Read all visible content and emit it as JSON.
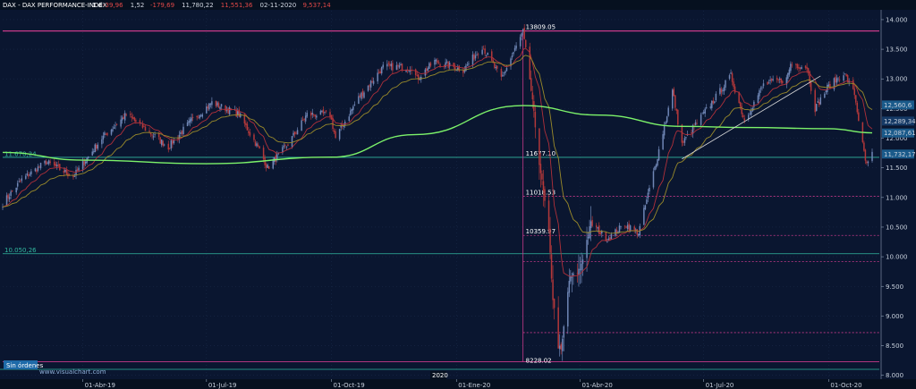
{
  "header": {
    "symbol": "DAX - DAX PERFORMANCE-INDEX",
    "timeframe": "1 d",
    "stats": [
      "-39,96",
      "1,52",
      "-179,69",
      "11,780,22",
      "11,551,36",
      "02-11-2020",
      "9,537,14"
    ]
  },
  "watermark": "www.visualchart.com",
  "orders_label": "Sin órdenes",
  "year_label": "2020",
  "colors": {
    "background": "#0a1630",
    "bull": "#6f86b5",
    "bear": "#b3383a",
    "sma200": "#7cf26a",
    "ema_fast": "#b0303a",
    "ema_slow": "#9a8a2a",
    "magenta": "#c83a8a",
    "teal": "#32b8a0",
    "trendline": "#d8d8d8"
  },
  "chart_data": {
    "type": "candlestick",
    "ylim": [
      7950,
      14150
    ],
    "yticks": [
      8000,
      8500,
      9000,
      9500,
      10000,
      10500,
      11000,
      11500,
      12000,
      12500,
      13000,
      13500,
      14000
    ],
    "ytick_labels": [
      "8.000",
      "8.500",
      "9.000",
      "9.500",
      "10.000",
      "10.500",
      "11.000",
      "11.500",
      "12.000",
      "12.500",
      "13.000",
      "13.500",
      "14.000"
    ],
    "date_range": [
      "2019-02-01",
      "2020-11-02"
    ],
    "xticks": [
      {
        "date": "2019-04-01",
        "label": "01-Abr-19"
      },
      {
        "date": "2019-07-01",
        "label": "01-Jul-19"
      },
      {
        "date": "2019-10-01",
        "label": "01-Oct-19"
      },
      {
        "date": "2020-01-01",
        "label": "01-Ene-20"
      },
      {
        "date": "2020-04-01",
        "label": "01-Abr-20"
      },
      {
        "date": "2020-07-01",
        "label": "01-Jul-20"
      },
      {
        "date": "2020-10-01",
        "label": "01-Oct-20"
      }
    ],
    "price_anchors": [
      [
        "2019-02-01",
        10900
      ],
      [
        "2019-02-15",
        11300
      ],
      [
        "2019-03-05",
        11600
      ],
      [
        "2019-03-25",
        11350
      ],
      [
        "2019-04-15",
        12000
      ],
      [
        "2019-05-03",
        12400
      ],
      [
        "2019-05-20",
        12100
      ],
      [
        "2019-06-03",
        11850
      ],
      [
        "2019-06-20",
        12300
      ],
      [
        "2019-07-05",
        12600
      ],
      [
        "2019-07-25",
        12400
      ],
      [
        "2019-08-09",
        11800
      ],
      [
        "2019-08-15",
        11500
      ],
      [
        "2019-08-30",
        11900
      ],
      [
        "2019-09-13",
        12400
      ],
      [
        "2019-09-30",
        12400
      ],
      [
        "2019-10-04",
        12000
      ],
      [
        "2019-10-20",
        12650
      ],
      [
        "2019-11-08",
        13200
      ],
      [
        "2019-11-29",
        13200
      ],
      [
        "2019-12-03",
        13000
      ],
      [
        "2019-12-16",
        13300
      ],
      [
        "2020-01-06",
        13150
      ],
      [
        "2020-01-20",
        13550
      ],
      [
        "2020-02-03",
        13000
      ],
      [
        "2020-02-19",
        13790
      ],
      [
        "2020-02-24",
        13000
      ],
      [
        "2020-03-02",
        11600
      ],
      [
        "2020-03-09",
        10400
      ],
      [
        "2020-03-12",
        9300
      ],
      [
        "2020-03-16",
        8500
      ],
      [
        "2020-03-18",
        8400
      ],
      [
        "2020-03-24",
        9600
      ],
      [
        "2020-04-01",
        9800
      ],
      [
        "2020-04-09",
        10560
      ],
      [
        "2020-04-21",
        10300
      ],
      [
        "2020-05-04",
        10550
      ],
      [
        "2020-05-14",
        10400
      ],
      [
        "2020-05-27",
        11600
      ],
      [
        "2020-06-08",
        12800
      ],
      [
        "2020-06-15",
        11900
      ],
      [
        "2020-06-24",
        12200
      ],
      [
        "2020-07-07",
        12600
      ],
      [
        "2020-07-21",
        13050
      ],
      [
        "2020-07-31",
        12300
      ],
      [
        "2020-08-14",
        12900
      ],
      [
        "2020-08-31",
        13000
      ],
      [
        "2020-09-03",
        13250
      ],
      [
        "2020-09-15",
        13200
      ],
      [
        "2020-09-21",
        12500
      ],
      [
        "2020-09-30",
        12850
      ],
      [
        "2020-10-12",
        13100
      ],
      [
        "2020-10-20",
        12750
      ],
      [
        "2020-10-28",
        11600
      ],
      [
        "2020-10-30",
        11560
      ],
      [
        "2020-11-02",
        11730
      ]
    ],
    "indicators": {
      "sma200_anchors": [
        [
          "2019-02-01",
          11760
        ],
        [
          "2019-04-01",
          11630
        ],
        [
          "2019-07-01",
          11570
        ],
        [
          "2019-10-01",
          11680
        ],
        [
          "2019-12-01",
          12060
        ],
        [
          "2020-02-19",
          12550
        ],
        [
          "2020-04-15",
          12390
        ],
        [
          "2020-06-15",
          12200
        ],
        [
          "2020-08-01",
          12180
        ],
        [
          "2020-10-01",
          12160
        ],
        [
          "2020-11-02",
          12090
        ]
      ]
    },
    "levels": [
      {
        "value": 13809.05,
        "label": "13809.05",
        "color": "magenta",
        "style": "solid"
      },
      {
        "value": 11677.1,
        "label": "11677.10",
        "color": "teal",
        "style": "solid"
      },
      {
        "value": 11018.53,
        "label": "11018.53",
        "color": "magenta",
        "style": "dashed"
      },
      {
        "value": 10359.97,
        "label": "10359.97",
        "color": "magenta",
        "style": "dashed"
      },
      {
        "value": 10050.26,
        "label": "10.050,26",
        "color": "teal",
        "style": "solid"
      },
      {
        "value": 9920,
        "label": "",
        "color": "magenta",
        "style": "dashed"
      },
      {
        "value": 8720,
        "label": "",
        "color": "magenta",
        "style": "dashed"
      },
      {
        "value": 8228.02,
        "label": "8228.02",
        "color": "magenta",
        "style": "solid"
      }
    ],
    "left_labels": [
      {
        "value": 11670.24,
        "label": "11.670,24"
      },
      {
        "value": 10050.26,
        "label": "10.050,26"
      }
    ],
    "price_tags": [
      {
        "value": 12560.6,
        "label": "12,560,6",
        "color": "#1a5a8a"
      },
      {
        "value": 12289.34,
        "label": "12,289,34",
        "color": "#163a66"
      },
      {
        "value": 12087.61,
        "label": "12,087,61",
        "color": "#1a5a8a"
      },
      {
        "value": 11732.17,
        "label": "11,732,17",
        "color": "#1a5a8a"
      }
    ],
    "event_date": "2020-02-19",
    "trendline": [
      [
        "2020-06-15",
        11650
      ],
      [
        "2020-09-25",
        13050
      ]
    ]
  }
}
